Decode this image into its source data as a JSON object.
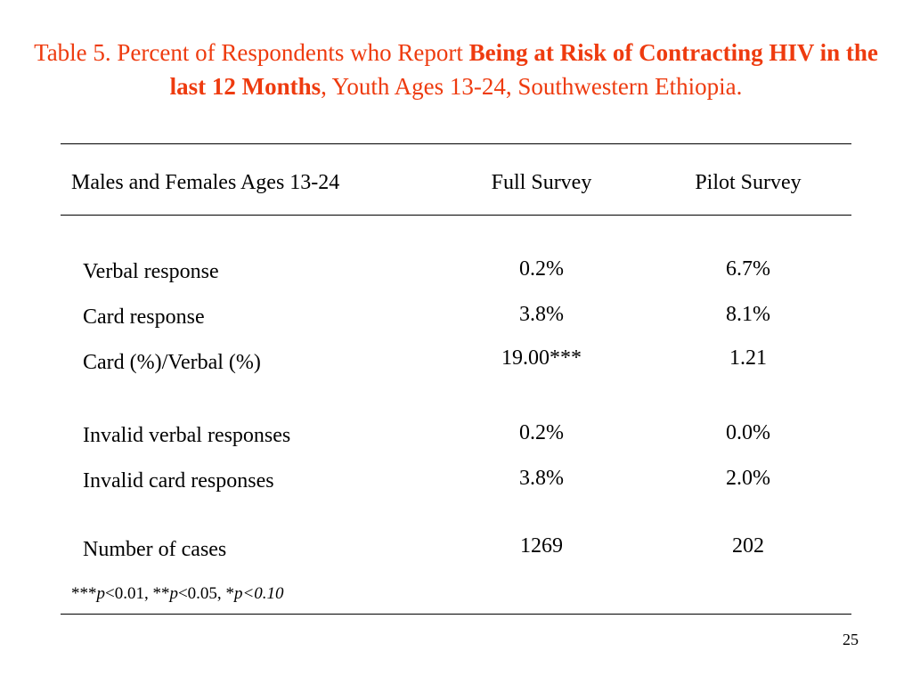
{
  "title": {
    "part1": "Table 5. Percent of Respondents who Report ",
    "bold1": "Being at Risk of Contracting HIV in the last 12 Months",
    "part2": ", Youth Ages 13-24, Southwestern Ethiopia."
  },
  "header": {
    "label": "Males and Females Ages 13-24",
    "col_full": "Full Survey",
    "col_pilot": "Pilot Survey"
  },
  "rows": [
    {
      "label": "Verbal response",
      "full": "0.2%",
      "pilot": "6.7%"
    },
    {
      "label": "Card response",
      "full": "3.8%",
      "pilot": "8.1%"
    },
    {
      "label": "Card (%)/Verbal (%)",
      "full": "19.00***",
      "pilot": "1.21"
    },
    {
      "label": "Invalid verbal responses",
      "full": "0.2%",
      "pilot": "0.0%"
    },
    {
      "label": "Invalid card responses",
      "full": "3.8%",
      "pilot": "2.0%"
    },
    {
      "label": "Number of cases",
      "full": "1269",
      "pilot": "202"
    }
  ],
  "footnote": {
    "a": "***",
    "a_p": "p",
    "a_val": "<0.01, ",
    "b": "**",
    "b_p": "p",
    "b_val": "<0.05, ",
    "c": "*",
    "c_p": "p",
    "c_val": "<0.10"
  },
  "page_number": "25",
  "colors": {
    "title": "#ee3b0f"
  }
}
